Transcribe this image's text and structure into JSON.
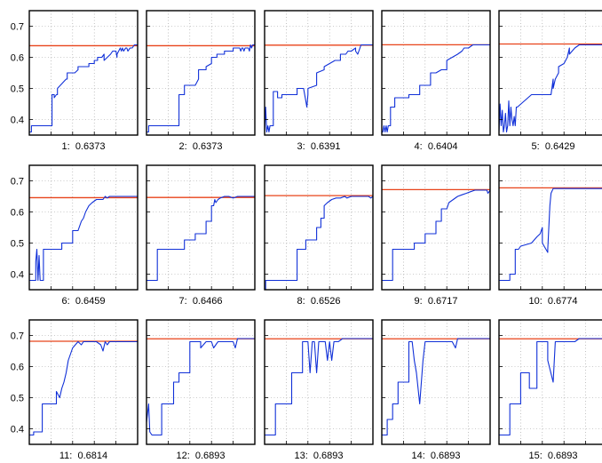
{
  "chart_data": {
    "type": "line",
    "layout": "small-multiples 3x5",
    "ylim": [
      0.35,
      0.75
    ],
    "yticks": [
      0.4,
      0.5,
      0.6,
      0.7
    ],
    "yticklabels": [
      "0.4",
      "0.5",
      "0.6",
      "0.7"
    ],
    "xlim": [
      0,
      100
    ],
    "grid": true,
    "colors": {
      "target": "#e8431a",
      "series": "#1030d8"
    },
    "panels": [
      {
        "caption": "1:  0.6373",
        "target": 0.6373,
        "x": [
          0,
          1,
          2,
          2,
          21,
          21,
          23,
          23,
          25,
          26,
          26,
          34,
          35,
          35,
          42,
          45,
          45,
          55,
          55,
          60,
          60,
          63,
          63,
          67,
          69,
          69,
          75,
          77,
          80,
          81,
          81,
          84,
          85,
          86,
          87,
          89,
          90,
          91,
          93,
          95,
          97,
          100
        ],
        "y": [
          0.36,
          0.36,
          0.36,
          0.38,
          0.38,
          0.48,
          0.48,
          0.47,
          0.48,
          0.48,
          0.5,
          0.53,
          0.53,
          0.55,
          0.55,
          0.56,
          0.57,
          0.57,
          0.58,
          0.58,
          0.59,
          0.59,
          0.6,
          0.6,
          0.61,
          0.59,
          0.61,
          0.62,
          0.62,
          0.6,
          0.61,
          0.63,
          0.62,
          0.63,
          0.62,
          0.63,
          0.63,
          0.62,
          0.63,
          0.63,
          0.64,
          0.64
        ]
      },
      {
        "caption": "2:  0.6373",
        "target": 0.6373,
        "x": [
          0,
          1,
          2,
          2,
          30,
          30,
          35,
          35,
          45,
          48,
          48,
          55,
          55,
          60,
          60,
          65,
          65,
          72,
          72,
          80,
          80,
          86,
          87,
          88,
          89,
          90,
          91,
          92,
          93,
          94,
          95,
          96,
          97,
          98,
          100
        ],
        "y": [
          0.36,
          0.36,
          0.36,
          0.38,
          0.38,
          0.48,
          0.48,
          0.51,
          0.51,
          0.53,
          0.56,
          0.56,
          0.57,
          0.58,
          0.6,
          0.6,
          0.61,
          0.61,
          0.62,
          0.62,
          0.63,
          0.63,
          0.62,
          0.63,
          0.63,
          0.62,
          0.63,
          0.63,
          0.63,
          0.63,
          0.62,
          0.64,
          0.63,
          0.64,
          0.64
        ],
        "alt": true
      },
      {
        "caption": "3:  0.6391",
        "target": 0.6391,
        "x": [
          0,
          1,
          2,
          3,
          4,
          5,
          6,
          8,
          8,
          12,
          12,
          16,
          16,
          30,
          30,
          36,
          38,
          39,
          40,
          40,
          48,
          48,
          55,
          55,
          60,
          65,
          70,
          70,
          75,
          77,
          80,
          84,
          84,
          86,
          88,
          89,
          90,
          92,
          93,
          95,
          97,
          100
        ],
        "y": [
          0.36,
          0.44,
          0.36,
          0.38,
          0.36,
          0.38,
          0.38,
          0.38,
          0.49,
          0.49,
          0.47,
          0.47,
          0.48,
          0.48,
          0.5,
          0.5,
          0.46,
          0.44,
          0.48,
          0.5,
          0.51,
          0.55,
          0.56,
          0.57,
          0.58,
          0.59,
          0.59,
          0.61,
          0.61,
          0.62,
          0.62,
          0.63,
          0.62,
          0.61,
          0.63,
          0.64,
          0.64,
          0.64,
          0.64,
          0.64,
          0.64,
          0.64
        ]
      },
      {
        "caption": "4:  0.6404",
        "target": 0.6404,
        "x": [
          0,
          1,
          2,
          3,
          4,
          5,
          6,
          7,
          8,
          8,
          12,
          12,
          25,
          25,
          35,
          35,
          45,
          45,
          50,
          55,
          60,
          60,
          65,
          70,
          74,
          76,
          80,
          84,
          88,
          92,
          96,
          100
        ],
        "y": [
          0.36,
          0.36,
          0.38,
          0.36,
          0.38,
          0.36,
          0.38,
          0.38,
          0.38,
          0.44,
          0.44,
          0.47,
          0.47,
          0.48,
          0.48,
          0.51,
          0.51,
          0.55,
          0.55,
          0.56,
          0.56,
          0.59,
          0.6,
          0.61,
          0.62,
          0.63,
          0.63,
          0.64,
          0.64,
          0.64,
          0.64,
          0.64
        ]
      },
      {
        "caption": "5:  0.6429",
        "target": 0.6429,
        "x": [
          0,
          1,
          2,
          3,
          4,
          5,
          6,
          7,
          8,
          9,
          10,
          11,
          12,
          13,
          14,
          15,
          16,
          17,
          30,
          30,
          48,
          50,
          50,
          52,
          55,
          55,
          60,
          63,
          65,
          65,
          70,
          74,
          76,
          80,
          85,
          88,
          90,
          95,
          100
        ],
        "y": [
          0.36,
          0.45,
          0.38,
          0.43,
          0.36,
          0.38,
          0.42,
          0.36,
          0.38,
          0.46,
          0.38,
          0.44,
          0.4,
          0.38,
          0.41,
          0.38,
          0.44,
          0.44,
          0.48,
          0.48,
          0.48,
          0.53,
          0.5,
          0.53,
          0.55,
          0.57,
          0.58,
          0.6,
          0.63,
          0.61,
          0.63,
          0.64,
          0.64,
          0.64,
          0.64,
          0.64,
          0.64,
          0.64,
          0.64
        ]
      },
      {
        "caption": "6:  0.6459",
        "target": 0.6459,
        "x": [
          0,
          6,
          6,
          7,
          8,
          9,
          10,
          10,
          13,
          13,
          30,
          30,
          40,
          40,
          45,
          48,
          50,
          52,
          55,
          58,
          62,
          65,
          68,
          70,
          72,
          74,
          78,
          82,
          86,
          90,
          95,
          100
        ],
        "y": [
          0.38,
          0.38,
          0.44,
          0.48,
          0.38,
          0.46,
          0.38,
          0.38,
          0.38,
          0.48,
          0.48,
          0.5,
          0.5,
          0.54,
          0.54,
          0.57,
          0.58,
          0.6,
          0.62,
          0.63,
          0.64,
          0.64,
          0.64,
          0.65,
          0.645,
          0.65,
          0.65,
          0.65,
          0.65,
          0.65,
          0.65,
          0.65
        ]
      },
      {
        "caption": "7:  0.6466",
        "target": 0.6466,
        "x": [
          0,
          10,
          10,
          35,
          35,
          45,
          45,
          55,
          55,
          60,
          60,
          62,
          63,
          64,
          66,
          68,
          72,
          76,
          80,
          84,
          88,
          92,
          96,
          100
        ],
        "y": [
          0.38,
          0.38,
          0.48,
          0.48,
          0.51,
          0.51,
          0.53,
          0.53,
          0.57,
          0.57,
          0.62,
          0.62,
          0.64,
          0.63,
          0.64,
          0.645,
          0.65,
          0.65,
          0.645,
          0.65,
          0.65,
          0.65,
          0.65,
          0.65
        ]
      },
      {
        "caption": "8:  0.6526",
        "target": 0.6526,
        "x": [
          0,
          1,
          1,
          30,
          30,
          38,
          38,
          48,
          48,
          52,
          52,
          55,
          55,
          58,
          62,
          66,
          70,
          74,
          76,
          80,
          84,
          88,
          92,
          96,
          98,
          100
        ],
        "y": [
          0.34,
          0.34,
          0.38,
          0.38,
          0.48,
          0.48,
          0.51,
          0.51,
          0.55,
          0.55,
          0.58,
          0.58,
          0.62,
          0.63,
          0.64,
          0.645,
          0.645,
          0.65,
          0.645,
          0.65,
          0.65,
          0.65,
          0.65,
          0.65,
          0.645,
          0.65
        ]
      },
      {
        "caption": "9:  0.6717",
        "target": 0.6717,
        "x": [
          0,
          10,
          10,
          30,
          30,
          40,
          40,
          50,
          50,
          55,
          55,
          60,
          62,
          66,
          70,
          74,
          78,
          82,
          86,
          90,
          94,
          97,
          98,
          100
        ],
        "y": [
          0.38,
          0.38,
          0.48,
          0.48,
          0.5,
          0.5,
          0.53,
          0.53,
          0.57,
          0.57,
          0.61,
          0.61,
          0.63,
          0.64,
          0.65,
          0.655,
          0.66,
          0.665,
          0.67,
          0.67,
          0.67,
          0.67,
          0.66,
          0.67
        ]
      },
      {
        "caption": "10:  0.6774",
        "target": 0.6774,
        "x": [
          0,
          10,
          10,
          15,
          15,
          18,
          20,
          30,
          35,
          38,
          40,
          40,
          45,
          45,
          47,
          48,
          50,
          52,
          55,
          60,
          65,
          70,
          75,
          80,
          85,
          90,
          95,
          100
        ],
        "y": [
          0.38,
          0.38,
          0.4,
          0.4,
          0.48,
          0.48,
          0.49,
          0.5,
          0.52,
          0.53,
          0.55,
          0.5,
          0.47,
          0.48,
          0.62,
          0.66,
          0.675,
          0.675,
          0.675,
          0.675,
          0.675,
          0.675,
          0.675,
          0.675,
          0.675,
          0.675,
          0.675,
          0.675
        ]
      },
      {
        "caption": "11:  0.6814",
        "target": 0.6814,
        "x": [
          0,
          4,
          4,
          12,
          12,
          25,
          25,
          28,
          30,
          32,
          34,
          36,
          40,
          45,
          48,
          50,
          52,
          55,
          58,
          62,
          66,
          68,
          70,
          72,
          74,
          78,
          82,
          86,
          90,
          95,
          100
        ],
        "y": [
          0.38,
          0.38,
          0.39,
          0.39,
          0.48,
          0.48,
          0.52,
          0.5,
          0.53,
          0.55,
          0.58,
          0.62,
          0.66,
          0.68,
          0.67,
          0.68,
          0.68,
          0.68,
          0.68,
          0.68,
          0.67,
          0.65,
          0.68,
          0.67,
          0.68,
          0.68,
          0.68,
          0.68,
          0.68,
          0.68,
          0.68
        ]
      },
      {
        "caption": "12:  0.6893",
        "target": 0.6893,
        "x": [
          0,
          2,
          3,
          5,
          5,
          14,
          14,
          25,
          25,
          30,
          30,
          40,
          40,
          50,
          50,
          55,
          58,
          60,
          62,
          66,
          70,
          75,
          80,
          82,
          84,
          88,
          92,
          95,
          98,
          100
        ],
        "y": [
          0.42,
          0.48,
          0.39,
          0.38,
          0.38,
          0.38,
          0.48,
          0.48,
          0.55,
          0.55,
          0.58,
          0.58,
          0.68,
          0.68,
          0.66,
          0.68,
          0.68,
          0.68,
          0.66,
          0.68,
          0.68,
          0.68,
          0.68,
          0.66,
          0.69,
          0.69,
          0.69,
          0.69,
          0.69,
          0.69
        ]
      },
      {
        "caption": "13:  0.6893",
        "target": 0.6893,
        "x": [
          0,
          10,
          10,
          25,
          25,
          35,
          35,
          40,
          42,
          44,
          46,
          48,
          50,
          52,
          56,
          58,
          60,
          62,
          64,
          68,
          72,
          76,
          80,
          84,
          88,
          92,
          96,
          100
        ],
        "y": [
          0.38,
          0.38,
          0.48,
          0.48,
          0.58,
          0.58,
          0.68,
          0.68,
          0.58,
          0.68,
          0.68,
          0.58,
          0.68,
          0.68,
          0.68,
          0.62,
          0.68,
          0.62,
          0.68,
          0.68,
          0.69,
          0.69,
          0.69,
          0.69,
          0.69,
          0.69,
          0.69,
          0.69
        ]
      },
      {
        "caption": "14:  0.6893",
        "target": 0.6893,
        "x": [
          0,
          5,
          5,
          10,
          10,
          15,
          15,
          25,
          25,
          28,
          30,
          32,
          35,
          38,
          40,
          45,
          50,
          55,
          60,
          65,
          68,
          70,
          72,
          76,
          80,
          85,
          90,
          95,
          100
        ],
        "y": [
          0.38,
          0.38,
          0.43,
          0.43,
          0.48,
          0.48,
          0.55,
          0.55,
          0.68,
          0.68,
          0.62,
          0.58,
          0.48,
          0.62,
          0.68,
          0.68,
          0.68,
          0.68,
          0.68,
          0.68,
          0.66,
          0.69,
          0.69,
          0.69,
          0.69,
          0.69,
          0.69,
          0.69,
          0.69
        ]
      },
      {
        "caption": "15:  0.6893",
        "target": 0.6893,
        "x": [
          0,
          10,
          10,
          20,
          20,
          28,
          28,
          35,
          35,
          45,
          45,
          50,
          52,
          55,
          58,
          60,
          62,
          66,
          70,
          74,
          78,
          82,
          86,
          90,
          95,
          100
        ],
        "y": [
          0.38,
          0.38,
          0.48,
          0.48,
          0.58,
          0.58,
          0.53,
          0.53,
          0.68,
          0.68,
          0.62,
          0.55,
          0.68,
          0.68,
          0.68,
          0.68,
          0.68,
          0.68,
          0.68,
          0.69,
          0.69,
          0.69,
          0.69,
          0.69,
          0.69,
          0.69
        ]
      }
    ]
  }
}
